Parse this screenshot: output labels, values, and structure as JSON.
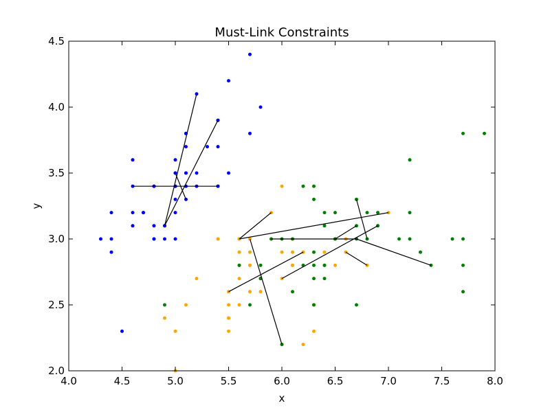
{
  "chart_data": {
    "type": "scatter",
    "title": "Must-Link Constraints",
    "xlabel": "x",
    "ylabel": "y",
    "xlim": [
      4.0,
      8.0
    ],
    "ylim": [
      2.0,
      4.5
    ],
    "xticks": [
      "4.0",
      "4.5",
      "5.0",
      "5.5",
      "6.0",
      "6.5",
      "7.0",
      "7.5",
      "8.0"
    ],
    "yticks": [
      "2.0",
      "2.5",
      "3.0",
      "3.5",
      "4.0",
      "4.5"
    ],
    "grid": false,
    "colors": {
      "blue": "#0000ff",
      "orange": "#ffa500",
      "green": "#008000",
      "link": "#000000"
    },
    "series": [
      {
        "color": "blue",
        "points": [
          [
            5.1,
            3.5
          ],
          [
            4.9,
            3.0
          ],
          [
            4.7,
            3.2
          ],
          [
            4.6,
            3.1
          ],
          [
            5.0,
            3.6
          ],
          [
            5.4,
            3.9
          ],
          [
            4.6,
            3.4
          ],
          [
            5.0,
            3.4
          ],
          [
            4.4,
            2.9
          ],
          [
            4.9,
            3.1
          ],
          [
            5.4,
            3.7
          ],
          [
            4.8,
            3.4
          ],
          [
            4.8,
            3.0
          ],
          [
            4.3,
            3.0
          ],
          [
            5.8,
            4.0
          ],
          [
            5.7,
            4.4
          ],
          [
            5.4,
            3.9
          ],
          [
            5.1,
            3.5
          ],
          [
            5.7,
            3.8
          ],
          [
            5.1,
            3.8
          ],
          [
            5.4,
            3.4
          ],
          [
            5.1,
            3.7
          ],
          [
            4.6,
            3.6
          ],
          [
            5.1,
            3.3
          ],
          [
            4.8,
            3.4
          ],
          [
            5.0,
            3.0
          ],
          [
            5.0,
            3.4
          ],
          [
            5.2,
            3.5
          ],
          [
            5.2,
            3.4
          ],
          [
            4.7,
            3.2
          ],
          [
            4.8,
            3.1
          ],
          [
            5.4,
            3.4
          ],
          [
            5.2,
            4.1
          ],
          [
            5.5,
            4.2
          ],
          [
            4.9,
            3.1
          ],
          [
            5.0,
            3.2
          ],
          [
            5.5,
            3.5
          ],
          [
            4.4,
            3.0
          ],
          [
            5.1,
            3.4
          ],
          [
            5.0,
            3.5
          ],
          [
            4.5,
            2.3
          ],
          [
            4.4,
            3.2
          ],
          [
            5.0,
            3.5
          ],
          [
            5.1,
            3.8
          ],
          [
            4.8,
            3.0
          ],
          [
            5.1,
            3.8
          ],
          [
            4.6,
            3.2
          ],
          [
            5.3,
            3.7
          ],
          [
            5.0,
            3.3
          ]
        ]
      },
      {
        "color": "orange",
        "points": [
          [
            5.5,
            2.3
          ],
          [
            5.7,
            2.8
          ],
          [
            4.9,
            2.4
          ],
          [
            5.2,
            2.7
          ],
          [
            5.0,
            2.0
          ],
          [
            5.9,
            3.0
          ],
          [
            6.0,
            2.2
          ],
          [
            5.6,
            2.9
          ],
          [
            5.8,
            2.7
          ],
          [
            6.2,
            2.2
          ],
          [
            5.6,
            2.5
          ],
          [
            5.9,
            3.2
          ],
          [
            6.1,
            2.8
          ],
          [
            6.3,
            2.5
          ],
          [
            6.1,
            2.8
          ],
          [
            6.6,
            3.0
          ],
          [
            6.8,
            2.8
          ],
          [
            6.0,
            2.9
          ],
          [
            5.7,
            2.6
          ],
          [
            5.5,
            2.4
          ],
          [
            5.5,
            2.4
          ],
          [
            5.8,
            2.7
          ],
          [
            6.0,
            2.7
          ],
          [
            5.4,
            3.0
          ],
          [
            6.0,
            3.4
          ],
          [
            5.6,
            3.0
          ],
          [
            5.5,
            2.5
          ],
          [
            5.5,
            2.6
          ],
          [
            6.1,
            3.0
          ],
          [
            5.8,
            2.6
          ],
          [
            5.0,
            2.3
          ],
          [
            5.6,
            2.7
          ],
          [
            5.7,
            3.0
          ],
          [
            5.7,
            2.9
          ],
          [
            6.2,
            2.9
          ],
          [
            5.1,
            2.5
          ],
          [
            5.7,
            2.8
          ],
          [
            6.3,
            2.3
          ],
          [
            6.4,
            2.9
          ],
          [
            6.6,
            2.9
          ],
          [
            5.6,
            3.0
          ],
          [
            6.5,
            2.8
          ],
          [
            7.0,
            3.2
          ],
          [
            6.1,
            2.9
          ],
          [
            5.8,
            2.7
          ],
          [
            6.0,
            2.2
          ],
          [
            5.6,
            2.8
          ],
          [
            6.3,
            2.5
          ]
        ]
      },
      {
        "color": "green",
        "points": [
          [
            6.3,
            3.3
          ],
          [
            5.8,
            2.7
          ],
          [
            7.1,
            3.0
          ],
          [
            6.3,
            2.9
          ],
          [
            6.5,
            3.0
          ],
          [
            7.6,
            3.0
          ],
          [
            4.9,
            2.5
          ],
          [
            7.3,
            2.9
          ],
          [
            6.7,
            2.5
          ],
          [
            7.2,
            3.6
          ],
          [
            6.5,
            3.2
          ],
          [
            6.4,
            2.7
          ],
          [
            6.8,
            3.0
          ],
          [
            5.7,
            2.5
          ],
          [
            5.8,
            2.8
          ],
          [
            6.4,
            3.2
          ],
          [
            6.5,
            3.0
          ],
          [
            7.7,
            3.8
          ],
          [
            7.7,
            2.6
          ],
          [
            6.0,
            2.2
          ],
          [
            6.9,
            3.2
          ],
          [
            5.6,
            2.8
          ],
          [
            7.7,
            2.8
          ],
          [
            6.3,
            2.7
          ],
          [
            6.7,
            3.3
          ],
          [
            7.2,
            3.2
          ],
          [
            6.2,
            2.8
          ],
          [
            6.1,
            3.0
          ],
          [
            6.4,
            2.8
          ],
          [
            7.2,
            3.0
          ],
          [
            7.4,
            2.8
          ],
          [
            7.9,
            3.8
          ],
          [
            6.4,
            2.8
          ],
          [
            6.3,
            2.8
          ],
          [
            6.1,
            2.6
          ],
          [
            7.7,
            3.0
          ],
          [
            6.3,
            3.4
          ],
          [
            6.4,
            3.1
          ],
          [
            6.0,
            3.0
          ],
          [
            6.9,
            3.1
          ],
          [
            6.7,
            3.1
          ],
          [
            6.9,
            3.1
          ],
          [
            5.8,
            2.7
          ],
          [
            6.8,
            3.2
          ],
          [
            6.7,
            3.3
          ],
          [
            6.7,
            3.0
          ],
          [
            6.3,
            2.5
          ],
          [
            6.5,
            3.0
          ],
          [
            6.2,
            3.4
          ],
          [
            5.9,
            3.0
          ]
        ]
      }
    ],
    "links": [
      [
        [
          4.6,
          3.4
        ],
        [
          5.4,
          3.4
        ]
      ],
      [
        [
          4.9,
          3.1
        ],
        [
          5.2,
          4.1
        ]
      ],
      [
        [
          4.9,
          3.1
        ],
        [
          5.4,
          3.9
        ]
      ],
      [
        [
          5.0,
          3.5
        ],
        [
          5.1,
          3.3
        ]
      ],
      [
        [
          5.6,
          3.0
        ],
        [
          5.9,
          3.2
        ]
      ],
      [
        [
          5.6,
          3.0
        ],
        [
          7.0,
          3.2
        ]
      ],
      [
        [
          5.7,
          3.0
        ],
        [
          6.0,
          2.2
        ]
      ],
      [
        [
          5.5,
          2.6
        ],
        [
          6.2,
          2.9
        ]
      ],
      [
        [
          6.0,
          2.7
        ],
        [
          6.9,
          3.1
        ]
      ],
      [
        [
          5.9,
          3.0
        ],
        [
          6.7,
          3.0
        ]
      ],
      [
        [
          6.7,
          3.0
        ],
        [
          7.4,
          2.8
        ]
      ],
      [
        [
          6.7,
          3.3
        ],
        [
          6.8,
          3.0
        ]
      ],
      [
        [
          6.6,
          2.9
        ],
        [
          6.8,
          2.8
        ]
      ],
      [
        [
          6.5,
          3.0
        ],
        [
          6.7,
          3.1
        ]
      ]
    ]
  }
}
